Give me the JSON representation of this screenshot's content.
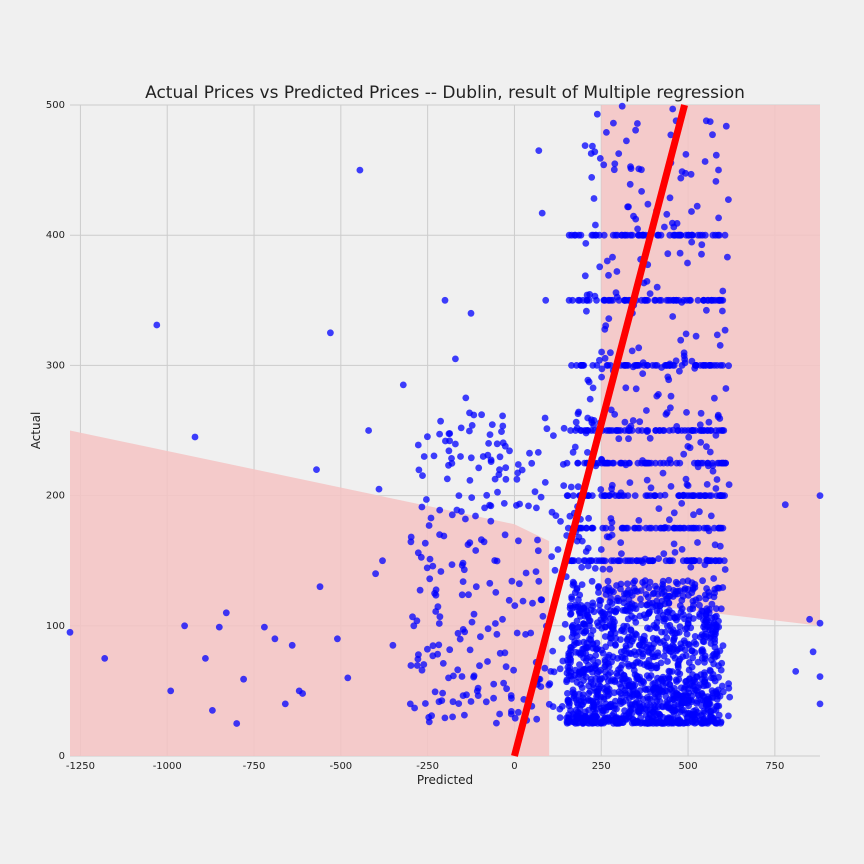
{
  "chart_data": {
    "type": "scatter",
    "title": "Actual Prices vs Predicted Prices -- Dublin, result of Multiple regression",
    "xlabel": "Predicted",
    "ylabel": "Actual",
    "xlim": [
      -1280,
      880
    ],
    "ylim": [
      0,
      500
    ],
    "xticks": [
      -1250,
      -1000,
      -750,
      -500,
      -250,
      0,
      250,
      500,
      750
    ],
    "yticks": [
      0,
      100,
      200,
      300,
      400,
      500
    ],
    "grid": true,
    "colors": {
      "points": "#0000ff",
      "line": "#ff0000",
      "band": "#f4c3c3",
      "background": "#f0f0f0",
      "grid": "#cccccc"
    },
    "regression_line": {
      "x": [
        0,
        490
      ],
      "y": [
        0,
        500
      ]
    },
    "band_upper": {
      "x": [
        -1280,
        0,
        100,
        250,
        880
      ],
      "y": [
        250,
        178,
        165,
        500,
        500
      ]
    },
    "band_lower": {
      "x": [
        -1280,
        100,
        250,
        880
      ],
      "y": [
        0,
        0,
        120,
        100
      ]
    },
    "series": [
      {
        "outliers": {
          "x": [
            -1280,
            -1180,
            -1030,
            -990,
            -950,
            -920,
            -890,
            -870,
            -850,
            -830,
            -800,
            -780,
            -720,
            -690,
            -660,
            -640,
            -620,
            -610,
            -570,
            -560,
            -530,
            -510,
            -480,
            -445,
            -420,
            -400,
            -390,
            -380,
            -350,
            -320,
            -300,
            -290,
            -260,
            -230,
            -200,
            -190,
            -170,
            -160,
            -140,
            -125,
            -110,
            -90,
            70,
            80,
            90,
            780,
            810,
            880,
            880,
            880,
            880,
            860,
            850
          ],
          "y": [
            95,
            75,
            331,
            50,
            100,
            245,
            75,
            35,
            99,
            110,
            25,
            59,
            99,
            90,
            40,
            85,
            50,
            48,
            220,
            130,
            325,
            90,
            60,
            450,
            250,
            140,
            205,
            150,
            85,
            285,
            40,
            100,
            230,
            125,
            350,
            60,
            305,
            200,
            275,
            340,
            130,
            230,
            465,
            417,
            350,
            193,
            65,
            200,
            102,
            40,
            61,
            80,
            105
          ]
        }
      }
    ]
  }
}
